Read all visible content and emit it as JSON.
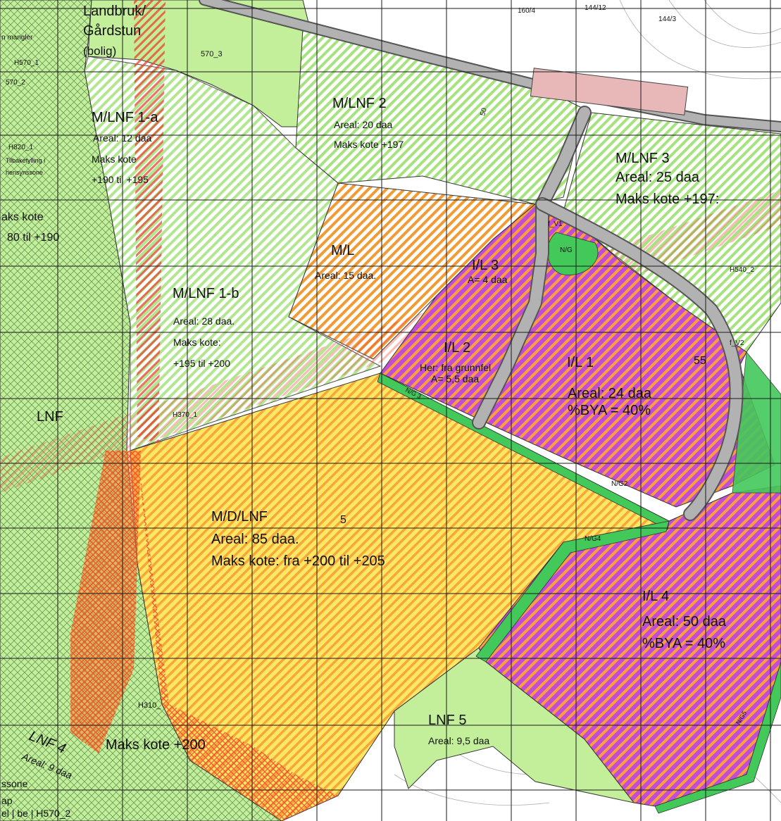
{
  "colors": {
    "background": "#ffffff",
    "lnf_green": "#c3ef9a",
    "lnf_green_dark": "#8fd66a",
    "forest_hatch": "#6c9a5c",
    "mixed_green_hatch": "#a6e27d",
    "orange_hatch": "#f39a32",
    "yellow_base": "#ffe766",
    "yellow_hatch": "#f6a73a",
    "purple_base": "#c04dd6",
    "orange_stripe": "#ff9e3d",
    "red_hatch": "#e8422f",
    "road_gray": "#b2b2b2",
    "green_strip": "#43c85a",
    "grid_line": "#1a1a1a",
    "contour": "#9a9a9a"
  },
  "labels": {
    "landbruk_line1": "Landbruk/",
    "landbruk_line2": "Gårdstun",
    "landbruk_line3": "(bolig)",
    "mangler": "n mangler",
    "h570_1": "H570_1",
    "h570_2": "570_2",
    "n570_3": "570_3",
    "h820_1": "H820_1",
    "tilbakefylling": "Tilbakefylling i",
    "hensynssone": "hensynssone",
    "mlnf1a_title": "M/LNF 1-a",
    "mlnf1a_areal": "Areal: 12 daa",
    "mlnf1a_maks": "Maks kote",
    "mlnf1a_range": "+190 til +195",
    "left_maks": "aks kote",
    "left_range": "80 til +190",
    "mlnf2_title": "M/LNF 2",
    "mlnf2_areal": "Areal: 20 daa",
    "mlnf2_maks": "Maks kote +197",
    "mlnf3_title": "M/LNF 3",
    "mlnf3_areal": "Areal: 25 daa",
    "mlnf3_maks": "Maks kote +197:",
    "ml_title": "M/L",
    "ml_areal": "Areal: 15 daa.",
    "il3_title": "I/L 3",
    "il3_areal": "A= 4 daa",
    "mlnf1b_title": "M/LNF 1-b",
    "mlnf1b_areal": "Areal: 28 daa.",
    "mlnf1b_maks": "Maks kote:",
    "mlnf1b_range": "+195 til +200",
    "il2_title": "I/L 2",
    "il2_note": "Her: fra grunnfel",
    "il2_areal": "A= 5,5 daa",
    "il1_title": "I/L 1",
    "il1_areal": "Areal: 24 daa",
    "il1_bya": "%BYA = 40%",
    "lnf_title": "LNF",
    "h370_1": "H370_1",
    "h540_2": "H540_2",
    "f_v1": "f_V1",
    "f_v2": "f_V2",
    "n_g": "N/G",
    "n_g3": "N/G 3",
    "n_g2": "N/G2",
    "n_g4": "N/G4",
    "n_g5": "N/G5",
    "mdlnf_title": "M/D/LNF",
    "mdlnf_areal": "Areal: 85 daa.",
    "mdlnf_maks": "Maks kote: fra +200 til +205",
    "il4_title": "I/L 4",
    "il4_areal": "Areal: 50 daa",
    "il4_bya": "%BYA = 40%",
    "h310": "H310_",
    "lnf5_title": "LNF 5",
    "lnf5_areal": "Areal: 9,5 daa",
    "lnf4_title": "LNF 4",
    "lnf4_areal": "Areal: 9 daa",
    "maks_kote_200": "Maks kote +200",
    "ssone": "ssone",
    "ap": "ap",
    "bottom_left": "el | be | H570_2",
    "top_1604": "160/4",
    "top_1443": "144/3",
    "top_1442": "144/12",
    "spot_55": "55",
    "spot_5": "5",
    "contour_50": "50"
  }
}
